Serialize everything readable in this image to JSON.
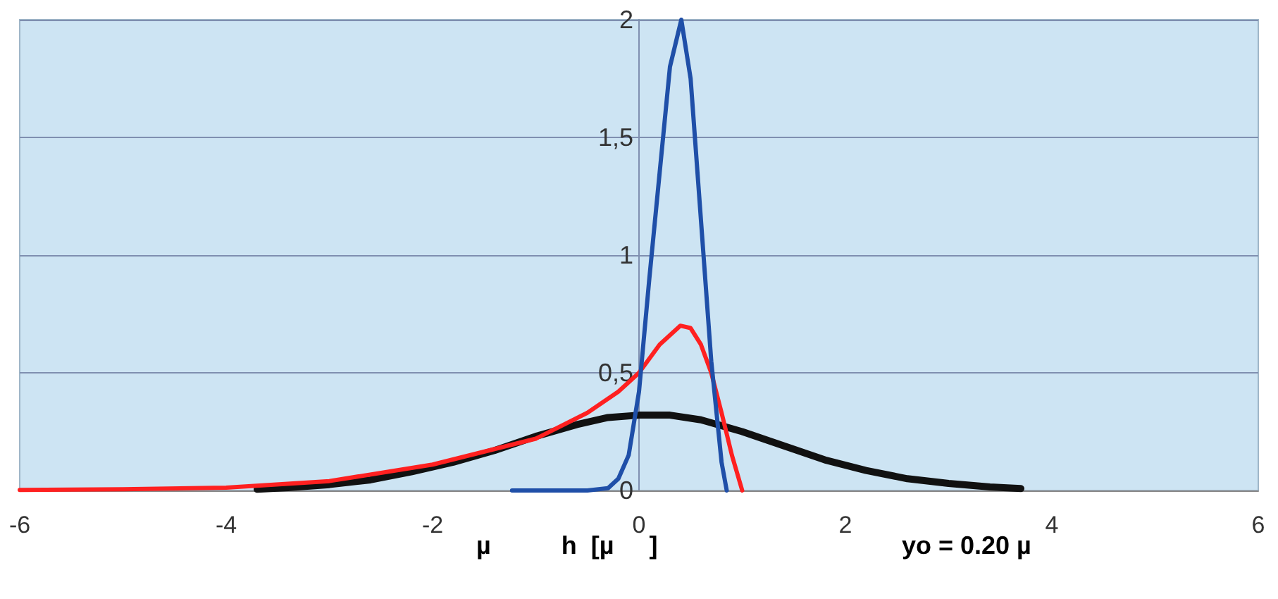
{
  "chart_data": {
    "type": "line",
    "xlabel": "µ          h  [µ     ]",
    "annotations": [
      "yo = 0.20 µ"
    ],
    "xlim": [
      -6,
      6
    ],
    "xticks": [
      -6,
      -4,
      -2,
      0,
      2,
      4,
      6
    ],
    "ylim": [
      0,
      2
    ],
    "yticks": [
      0,
      {
        "value": 0.5,
        "label": "0,5"
      },
      1,
      {
        "value": 1.5,
        "label": "1,5"
      },
      2
    ],
    "grid": "y",
    "marker": "none",
    "line_style": "solid",
    "series": [
      {
        "color": "#111111",
        "x": [
          -3.7,
          -3.4,
          -3,
          -2.6,
          -2.2,
          -1.8,
          -1.4,
          -1,
          -0.6,
          -0.3,
          0,
          0.3,
          0.6,
          1,
          1.4,
          1.8,
          2.2,
          2.6,
          3,
          3.4,
          3.7
        ],
        "values": [
          0.005,
          0.012,
          0.025,
          0.045,
          0.08,
          0.12,
          0.17,
          0.23,
          0.28,
          0.31,
          0.32,
          0.32,
          0.3,
          0.25,
          0.19,
          0.13,
          0.085,
          0.05,
          0.03,
          0.015,
          0.008
        ]
      },
      {
        "color": "#ff2020",
        "x": [
          -6,
          -5,
          -4,
          -3,
          -2,
          -1,
          -0.5,
          -0.2,
          0,
          0.2,
          0.4,
          0.5,
          0.6,
          0.7,
          0.8,
          0.9,
          1.0
        ],
        "values": [
          0.002,
          0.005,
          0.012,
          0.04,
          0.11,
          0.22,
          0.33,
          0.42,
          0.5,
          0.62,
          0.7,
          0.69,
          0.62,
          0.5,
          0.33,
          0.15,
          0
        ]
      },
      {
        "color": "#1f4fa8",
        "x": [
          -1.23,
          -0.5,
          -0.3,
          -0.2,
          -0.1,
          0,
          0.1,
          0.2,
          0.3,
          0.41,
          0.5,
          0.6,
          0.7,
          0.8,
          0.85
        ],
        "values": [
          0,
          0,
          0.01,
          0.05,
          0.15,
          0.42,
          0.9,
          1.35,
          1.8,
          2.0,
          1.75,
          1.15,
          0.55,
          0.12,
          0
        ]
      }
    ]
  }
}
